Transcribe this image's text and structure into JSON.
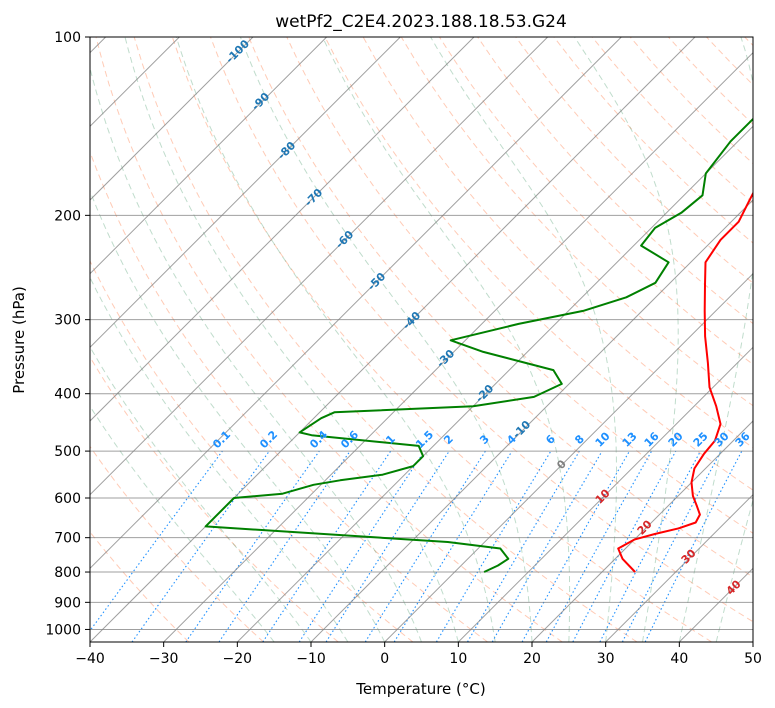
{
  "chart_data": {
    "type": "line",
    "subtype": "skew-T log-P diagram",
    "title": "wetPf2_C2E4.2023.188.18.53.G24",
    "xlabel": "Temperature (°C)",
    "ylabel": "Pressure (hPa)",
    "xlim": [
      -40,
      50
    ],
    "ylim": [
      1050,
      100
    ],
    "y_scale": "log",
    "grid": true,
    "x_ticks": [
      -40,
      -30,
      -20,
      -10,
      0,
      10,
      20,
      30,
      40,
      50
    ],
    "y_ticks": [
      100,
      200,
      300,
      400,
      500,
      600,
      700,
      800,
      900,
      1000
    ],
    "colors": {
      "temperature": "#ff0000",
      "dewpoint": "#008000",
      "dry_adiabats": "#ffa07a",
      "moist_adiabats": "#2e8b57",
      "mixing_ratio": "#1e90ff",
      "isotherms": "#808080",
      "moist_adiabat_labels": "#1f77b4",
      "dry_adiabat_labels": "#d62728",
      "isotherm_zero_label": "#808080"
    },
    "series": [
      {
        "key": "temperature",
        "points": [
          [
            24.5,
            800
          ],
          [
            21,
            760
          ],
          [
            19,
            730
          ],
          [
            20,
            705
          ],
          [
            22,
            690
          ],
          [
            24.5,
            675
          ],
          [
            26,
            660
          ],
          [
            25.5,
            640
          ],
          [
            24,
            620
          ],
          [
            22,
            595
          ],
          [
            20,
            565
          ],
          [
            18.5,
            535
          ],
          [
            17.8,
            505
          ],
          [
            17.5,
            480
          ],
          [
            16,
            450
          ],
          [
            13,
            420
          ],
          [
            9.5,
            390
          ],
          [
            6,
            355
          ],
          [
            2,
            320
          ],
          [
            -1.5,
            290
          ],
          [
            -5,
            262
          ],
          [
            -8,
            240
          ],
          [
            -9,
            220
          ],
          [
            -9,
            205
          ],
          [
            -10.5,
            188
          ],
          [
            -12,
            172
          ],
          [
            -12,
            157
          ],
          [
            -10,
            145
          ],
          [
            -7,
            135
          ],
          [
            -5,
            125
          ],
          [
            -3.5,
            115
          ],
          [
            -3,
            106
          ],
          [
            -3.5,
            100
          ]
        ]
      },
      {
        "key": "dewpoint",
        "points": [
          [
            4,
            800
          ],
          [
            5,
            780
          ],
          [
            5.5,
            760
          ],
          [
            3,
            730
          ],
          [
            -5,
            712
          ],
          [
            -40,
            670
          ],
          [
            -40,
            600
          ],
          [
            -34,
            590
          ],
          [
            -31,
            570
          ],
          [
            -28,
            560
          ],
          [
            -23,
            548
          ],
          [
            -20,
            530
          ],
          [
            -20,
            510
          ],
          [
            -22,
            490
          ],
          [
            -38,
            470
          ],
          [
            -40,
            465
          ],
          [
            -39,
            440
          ],
          [
            -38,
            430
          ],
          [
            -20,
            420
          ],
          [
            -13,
            405
          ],
          [
            -11,
            385
          ],
          [
            -14,
            365
          ],
          [
            -26,
            340
          ],
          [
            -32,
            325
          ],
          [
            -25,
            305
          ],
          [
            -18,
            290
          ],
          [
            -14,
            275
          ],
          [
            -12,
            260
          ],
          [
            -13,
            240
          ],
          [
            -19,
            225
          ],
          [
            -19.5,
            210
          ],
          [
            -18,
            198
          ],
          [
            -17.5,
            185
          ],
          [
            -20,
            170
          ],
          [
            -21,
            150
          ],
          [
            -21,
            135
          ],
          [
            -19,
            125
          ],
          [
            -15,
            115
          ],
          [
            -13,
            107
          ],
          [
            -12,
            100
          ]
        ]
      }
    ],
    "moist_adiabat_labels": [
      "-100",
      "-90",
      "-80",
      "-70",
      "-60",
      "-50",
      "-40",
      "-30",
      "-20",
      "-10"
    ],
    "dry_adiabat_labels": [
      "0",
      "10",
      "20",
      "30",
      "40"
    ],
    "mixing_ratio_labels": [
      "0.1",
      "0.2",
      "0.4",
      "0.6",
      "1",
      "1.5",
      "2",
      "3",
      "4",
      "6",
      "8",
      "10",
      "13",
      "16",
      "20",
      "25",
      "30",
      "36"
    ]
  }
}
